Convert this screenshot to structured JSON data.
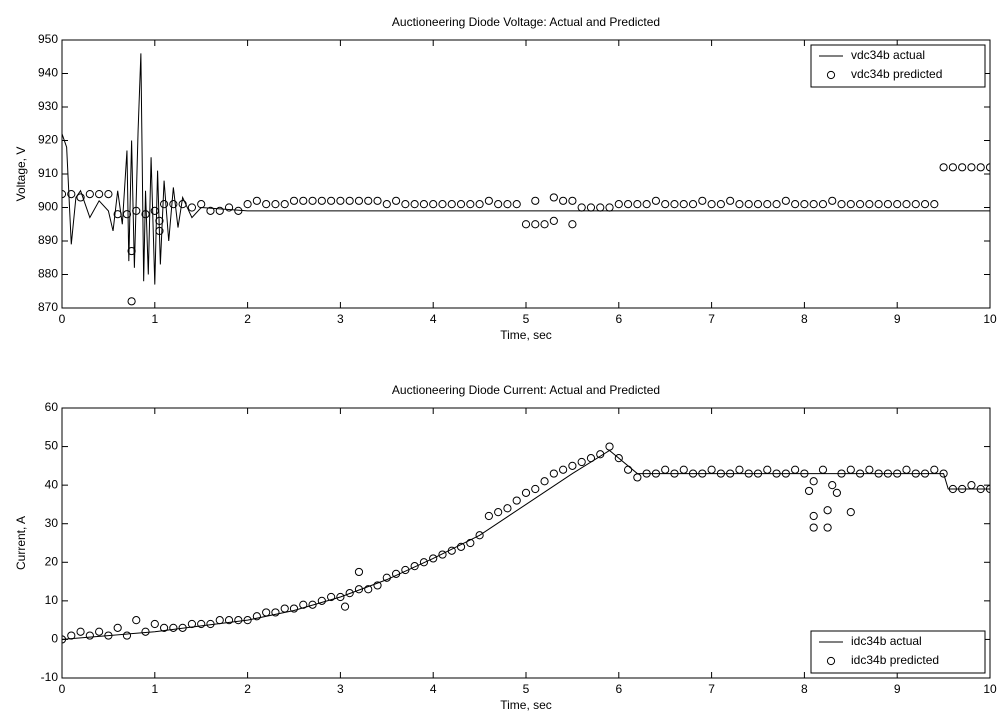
{
  "chart_data": [
    {
      "type": "line",
      "title": "Auctioneering Diode Voltage: Actual and Predicted",
      "xlabel": "Time, sec",
      "ylabel": "Voltage, V",
      "xlim": [
        0,
        10
      ],
      "xticks": [
        0,
        1,
        2,
        3,
        4,
        5,
        6,
        7,
        8,
        9,
        10
      ],
      "ylim": [
        870,
        950
      ],
      "yticks": [
        870,
        880,
        890,
        900,
        910,
        920,
        930,
        940,
        950
      ],
      "legend": "upper right",
      "series": [
        {
          "name": "vdc34b actual",
          "color": "#000000",
          "style": "line",
          "x": [
            0,
            0.05,
            0.1,
            0.15,
            0.2,
            0.3,
            0.4,
            0.5,
            0.55,
            0.6,
            0.65,
            0.7,
            0.72,
            0.75,
            0.78,
            0.82,
            0.85,
            0.88,
            0.9,
            0.93,
            0.96,
            1,
            1.03,
            1.06,
            1.1,
            1.15,
            1.2,
            1.25,
            1.3,
            1.4,
            1.5,
            2,
            10
          ],
          "values": [
            922,
            918,
            889,
            903,
            905,
            897,
            902,
            899,
            893,
            905,
            895,
            917,
            884,
            920,
            882,
            923,
            946,
            878,
            905,
            880,
            915,
            877,
            911,
            883,
            908,
            890,
            906,
            894,
            903,
            897,
            900,
            899,
            899
          ]
        },
        {
          "name": "vdc34b predicted",
          "color": "#000000",
          "style": "circle",
          "x": [
            0,
            0.1,
            0.2,
            0.3,
            0.4,
            0.5,
            0.6,
            0.7,
            0.8,
            0.9,
            1,
            1.1,
            1.2,
            1.3,
            1.4,
            1.5,
            1.6,
            1.7,
            1.8,
            1.9,
            2,
            2.1,
            2.2,
            2.3,
            2.4,
            2.5,
            2.6,
            2.7,
            2.8,
            2.9,
            3,
            3.1,
            3.2,
            3.3,
            3.4,
            3.5,
            3.6,
            3.7,
            3.8,
            3.9,
            4,
            4.1,
            4.2,
            4.3,
            4.4,
            4.5,
            4.6,
            4.7,
            4.8,
            4.9,
            5,
            5.1,
            5.2,
            5.3,
            5.4,
            5.5,
            5.6,
            5.7,
            5.8,
            5.9,
            6,
            6.1,
            6.2,
            6.3,
            6.4,
            6.5,
            6.6,
            6.7,
            6.8,
            6.9,
            7,
            7.1,
            7.2,
            7.3,
            7.4,
            7.5,
            7.6,
            7.7,
            7.8,
            7.9,
            8,
            8.1,
            8.2,
            8.3,
            8.4,
            8.5,
            8.6,
            8.7,
            8.8,
            8.9,
            9,
            9.1,
            9.2,
            9.3,
            9.4,
            9.5,
            9.6,
            9.7,
            9.8,
            9.9,
            10,
            0.75,
            0.75,
            1.05,
            1.05,
            5.1,
            5.3,
            5.5
          ],
          "values": [
            904,
            904,
            903,
            904,
            904,
            904,
            898,
            898,
            899,
            898,
            899,
            901,
            901,
            901,
            900,
            901,
            899,
            899,
            900,
            899,
            901,
            902,
            901,
            901,
            901,
            902,
            902,
            902,
            902,
            902,
            902,
            902,
            902,
            902,
            902,
            901,
            902,
            901,
            901,
            901,
            901,
            901,
            901,
            901,
            901,
            901,
            902,
            901,
            901,
            901,
            895,
            895,
            895,
            896,
            902,
            902,
            900,
            900,
            900,
            900,
            901,
            901,
            901,
            901,
            902,
            901,
            901,
            901,
            901,
            902,
            901,
            901,
            902,
            901,
            901,
            901,
            901,
            901,
            902,
            901,
            901,
            901,
            901,
            902,
            901,
            901,
            901,
            901,
            901,
            901,
            901,
            901,
            901,
            901,
            901,
            912,
            912,
            912,
            912,
            912,
            912,
            887,
            872,
            893,
            896,
            902,
            903,
            895
          ]
        }
      ]
    },
    {
      "type": "line",
      "title": "Auctioneering Diode Current: Actual and Predicted",
      "xlabel": "Time, sec",
      "ylabel": "Current, A",
      "xlim": [
        0,
        10
      ],
      "xticks": [
        0,
        1,
        2,
        3,
        4,
        5,
        6,
        7,
        8,
        9,
        10
      ],
      "ylim": [
        -10,
        60
      ],
      "yticks": [
        -10,
        0,
        10,
        20,
        30,
        40,
        50,
        60
      ],
      "legend": "lower right",
      "series": [
        {
          "name": "idc34b actual",
          "color": "#000000",
          "style": "line",
          "x": [
            0,
            0.5,
            1,
            1.5,
            2,
            2.5,
            3,
            3.5,
            4,
            4.5,
            5,
            5.5,
            5.9,
            6.2,
            9.5,
            9.55,
            10
          ],
          "values": [
            0,
            1,
            2,
            3.5,
            5,
            7.5,
            11,
            15.5,
            21,
            27,
            35,
            43,
            49,
            43,
            43,
            39,
            39
          ]
        },
        {
          "name": "idc34b predicted",
          "color": "#000000",
          "style": "circle",
          "x": [
            0,
            0.1,
            0.2,
            0.3,
            0.4,
            0.5,
            0.6,
            0.7,
            0.8,
            0.9,
            1,
            1.1,
            1.2,
            1.3,
            1.4,
            1.5,
            1.6,
            1.7,
            1.8,
            1.9,
            2,
            2.1,
            2.2,
            2.3,
            2.4,
            2.5,
            2.6,
            2.7,
            2.8,
            2.9,
            3,
            3.1,
            3.2,
            3.3,
            3.4,
            3.5,
            3.6,
            3.7,
            3.8,
            3.9,
            4,
            4.1,
            4.2,
            4.3,
            4.4,
            4.5,
            4.6,
            4.7,
            4.8,
            4.9,
            5,
            5.1,
            5.2,
            5.3,
            5.4,
            5.5,
            5.6,
            5.7,
            5.8,
            5.9,
            6,
            6.1,
            6.2,
            6.3,
            6.4,
            6.5,
            6.6,
            6.7,
            6.8,
            6.9,
            7,
            7.1,
            7.2,
            7.3,
            7.4,
            7.5,
            7.6,
            7.7,
            7.8,
            7.9,
            8,
            8.1,
            8.2,
            8.3,
            8.4,
            8.5,
            8.6,
            8.7,
            8.8,
            8.9,
            9,
            9.1,
            9.2,
            9.3,
            9.4,
            9.5,
            9.6,
            9.7,
            9.8,
            9.9,
            10,
            3.05,
            3.2,
            8.05,
            8.1,
            8.1,
            8.25,
            8.25,
            8.35,
            8.5
          ],
          "values": [
            0,
            1,
            2,
            1,
            2,
            1,
            3,
            1,
            5,
            2,
            4,
            3,
            3,
            3,
            4,
            4,
            4,
            5,
            5,
            5,
            5,
            6,
            7,
            7,
            8,
            8,
            9,
            9,
            10,
            11,
            11,
            12,
            13,
            13,
            14,
            16,
            17,
            18,
            19,
            20,
            21,
            22,
            23,
            24,
            25,
            27,
            32,
            33,
            34,
            36,
            38,
            39,
            41,
            43,
            44,
            45,
            46,
            47,
            48,
            50,
            47,
            44,
            42,
            43,
            43,
            44,
            43,
            44,
            43,
            43,
            44,
            43,
            43,
            44,
            43,
            43,
            44,
            43,
            43,
            44,
            43,
            41,
            44,
            40,
            43,
            44,
            43,
            44,
            43,
            43,
            43,
            44,
            43,
            43,
            44,
            43,
            39,
            39,
            40,
            39,
            39,
            8.5,
            17.5,
            38.5,
            29,
            32,
            33.5,
            29,
            38,
            33
          ]
        }
      ]
    }
  ]
}
